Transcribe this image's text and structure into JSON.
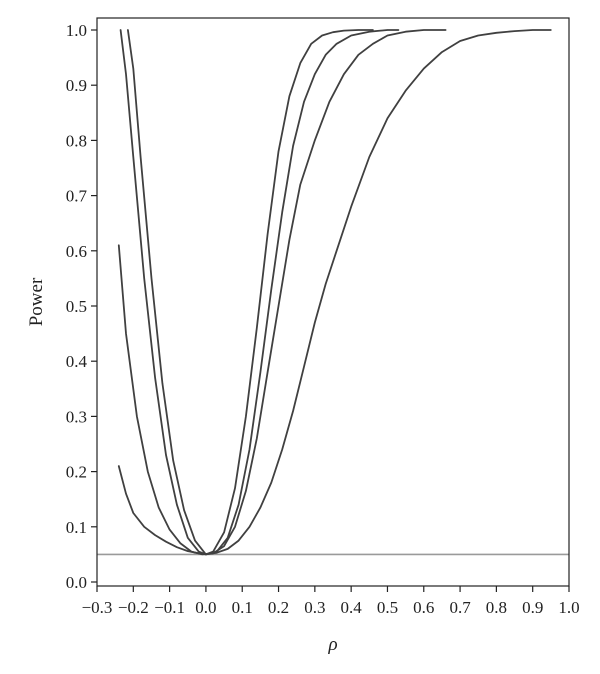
{
  "chart_data": {
    "type": "line",
    "title": "",
    "xlabel": "ρ",
    "ylabel": "Power",
    "xlim": [
      -0.3,
      1.0
    ],
    "ylim": [
      0.0,
      1.0
    ],
    "x_ticks": [
      "−0.3",
      "−0.2",
      "−0.1",
      "0.0",
      "0.1",
      "0.2",
      "0.3",
      "0.4",
      "0.5",
      "0.6",
      "0.7",
      "0.8",
      "0.9",
      "1.0"
    ],
    "y_ticks": [
      "0.0",
      "0.1",
      "0.2",
      "0.3",
      "0.4",
      "0.5",
      "0.6",
      "0.7",
      "0.8",
      "0.9",
      "1.0"
    ],
    "grid": false,
    "legend": "none",
    "reference_line": {
      "y": 0.05,
      "color": "#9a9a9a"
    },
    "line_color": "#404040",
    "series": [
      {
        "x": [
          -0.235,
          -0.22,
          -0.2,
          -0.17,
          -0.14,
          -0.11,
          -0.08,
          -0.05,
          -0.02,
          0.0,
          0.02,
          0.05,
          0.08,
          0.11,
          0.14,
          0.17,
          0.2,
          0.23,
          0.26,
          0.29,
          0.32,
          0.35,
          0.38,
          0.42,
          0.46
        ],
        "y": [
          1.0,
          0.92,
          0.77,
          0.55,
          0.37,
          0.23,
          0.14,
          0.08,
          0.055,
          0.05,
          0.055,
          0.09,
          0.17,
          0.3,
          0.46,
          0.63,
          0.78,
          0.88,
          0.94,
          0.975,
          0.99,
          0.996,
          0.999,
          1.0,
          1.0
        ]
      },
      {
        "x": [
          -0.215,
          -0.2,
          -0.18,
          -0.15,
          -0.12,
          -0.09,
          -0.06,
          -0.03,
          0.0,
          0.03,
          0.06,
          0.09,
          0.12,
          0.15,
          0.18,
          0.21,
          0.24,
          0.27,
          0.3,
          0.33,
          0.36,
          0.4,
          0.45,
          0.5,
          0.53
        ],
        "y": [
          1.0,
          0.93,
          0.77,
          0.55,
          0.36,
          0.22,
          0.13,
          0.075,
          0.05,
          0.055,
          0.08,
          0.14,
          0.24,
          0.38,
          0.53,
          0.67,
          0.79,
          0.87,
          0.92,
          0.955,
          0.975,
          0.99,
          0.997,
          1.0,
          1.0
        ]
      },
      {
        "x": [
          -0.24,
          -0.22,
          -0.19,
          -0.16,
          -0.13,
          -0.1,
          -0.07,
          -0.04,
          -0.01,
          0.02,
          0.05,
          0.08,
          0.11,
          0.14,
          0.17,
          0.2,
          0.23,
          0.26,
          0.3,
          0.34,
          0.38,
          0.42,
          0.46,
          0.5,
          0.55,
          0.6,
          0.66
        ],
        "y": [
          0.61,
          0.45,
          0.3,
          0.2,
          0.135,
          0.095,
          0.07,
          0.055,
          0.05,
          0.052,
          0.065,
          0.1,
          0.165,
          0.26,
          0.38,
          0.5,
          0.62,
          0.72,
          0.8,
          0.87,
          0.92,
          0.955,
          0.975,
          0.99,
          0.997,
          1.0,
          1.0
        ]
      },
      {
        "x": [
          -0.24,
          -0.22,
          -0.2,
          -0.17,
          -0.14,
          -0.11,
          -0.08,
          -0.05,
          -0.02,
          0.0,
          0.03,
          0.06,
          0.09,
          0.12,
          0.15,
          0.18,
          0.21,
          0.24,
          0.27,
          0.3,
          0.33,
          0.36,
          0.4,
          0.45,
          0.5,
          0.55,
          0.6,
          0.65,
          0.7,
          0.75,
          0.8,
          0.85,
          0.9,
          0.95
        ],
        "y": [
          0.21,
          0.16,
          0.125,
          0.1,
          0.085,
          0.073,
          0.063,
          0.056,
          0.052,
          0.05,
          0.053,
          0.06,
          0.075,
          0.1,
          0.135,
          0.18,
          0.24,
          0.31,
          0.39,
          0.47,
          0.54,
          0.6,
          0.68,
          0.77,
          0.84,
          0.89,
          0.93,
          0.96,
          0.98,
          0.99,
          0.995,
          0.998,
          1.0,
          1.0
        ]
      }
    ]
  }
}
